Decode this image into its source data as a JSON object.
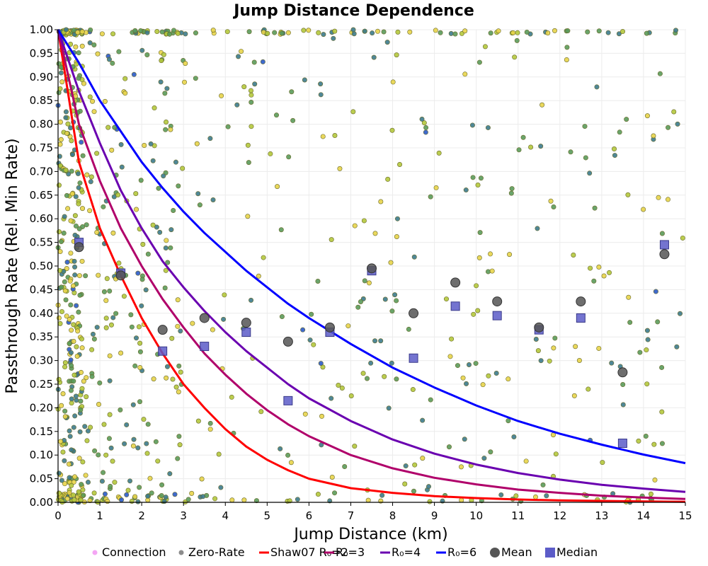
{
  "chart_data": {
    "type": "scatter",
    "title": "Jump Distance Dependence",
    "xlabel": "Jump Distance (km)",
    "ylabel": "Passthrough Rate (Rel. Min Rate)",
    "xlim": [
      0,
      15
    ],
    "ylim": [
      0,
      1
    ],
    "xticks": [
      "0",
      "1",
      "2",
      "3",
      "4",
      "5",
      "6",
      "7",
      "8",
      "9",
      "10",
      "11",
      "12",
      "13",
      "14",
      "15"
    ],
    "yticks": [
      "0.00",
      "0.05",
      "0.10",
      "0.15",
      "0.20",
      "0.25",
      "0.30",
      "0.35",
      "0.40",
      "0.45",
      "0.50",
      "0.55",
      "0.60",
      "0.65",
      "0.70",
      "0.75",
      "0.80",
      "0.85",
      "0.90",
      "0.95",
      "1.00"
    ],
    "grid": true,
    "legend_position": "bottom",
    "legend": [
      {
        "label": "Connection",
        "kind": "dot",
        "color": "#f4a6f4"
      },
      {
        "label": "Zero-Rate",
        "kind": "dot",
        "color": "#8c8c8c"
      },
      {
        "label": "Shaw07 R₀=2",
        "kind": "line",
        "color": "#ff0000"
      },
      {
        "label": "R₀=3",
        "kind": "line",
        "color": "#b0006a"
      },
      {
        "label": "R₀=4",
        "kind": "line",
        "color": "#6a00b0"
      },
      {
        "label": "R₀=6",
        "kind": "line",
        "color": "#0000ff"
      },
      {
        "label": "Mean",
        "kind": "circle",
        "color": "#555555"
      },
      {
        "label": "Median",
        "kind": "square",
        "color": "#5c5cc8"
      }
    ],
    "curves": [
      {
        "name": "Shaw07 R₀=2",
        "color": "#ff0000",
        "x": [
          0,
          0.5,
          1,
          1.5,
          2,
          2.5,
          3,
          3.5,
          4,
          4.5,
          5,
          5.5,
          6,
          7,
          8,
          9,
          10,
          11,
          12,
          13,
          14,
          15
        ],
        "y": [
          1.0,
          0.72,
          0.58,
          0.48,
          0.39,
          0.315,
          0.25,
          0.2,
          0.155,
          0.118,
          0.09,
          0.068,
          0.05,
          0.03,
          0.02,
          0.013,
          0.009,
          0.006,
          0.004,
          0.003,
          0.002,
          0.001
        ]
      },
      {
        "name": "R₀=3",
        "color": "#b0006a",
        "x": [
          0,
          0.5,
          1,
          1.5,
          2,
          2.5,
          3,
          3.5,
          4,
          4.5,
          5,
          5.5,
          6,
          7,
          8,
          9,
          10,
          11,
          12,
          13,
          14,
          15
        ],
        "y": [
          1.0,
          0.8,
          0.68,
          0.58,
          0.5,
          0.43,
          0.37,
          0.315,
          0.27,
          0.23,
          0.195,
          0.165,
          0.14,
          0.1,
          0.072,
          0.052,
          0.038,
          0.027,
          0.02,
          0.014,
          0.01,
          0.007
        ]
      },
      {
        "name": "R₀=4",
        "color": "#6a00b0",
        "x": [
          0,
          0.5,
          1,
          1.5,
          2,
          2.5,
          3,
          3.5,
          4,
          4.5,
          5,
          5.5,
          6,
          7,
          8,
          9,
          10,
          11,
          12,
          13,
          14,
          15
        ],
        "y": [
          1.0,
          0.87,
          0.76,
          0.66,
          0.58,
          0.51,
          0.455,
          0.405,
          0.36,
          0.32,
          0.285,
          0.25,
          0.22,
          0.172,
          0.133,
          0.103,
          0.08,
          0.062,
          0.048,
          0.037,
          0.029,
          0.022
        ]
      },
      {
        "name": "R₀=6",
        "color": "#0000ff",
        "x": [
          0,
          0.5,
          1,
          1.5,
          2,
          2.5,
          3,
          3.5,
          4,
          4.5,
          5,
          5.5,
          6,
          7,
          8,
          9,
          10,
          11,
          12,
          13,
          14,
          15
        ],
        "y": [
          1.0,
          0.93,
          0.85,
          0.785,
          0.72,
          0.665,
          0.615,
          0.57,
          0.53,
          0.49,
          0.455,
          0.42,
          0.39,
          0.335,
          0.285,
          0.243,
          0.205,
          0.172,
          0.145,
          0.122,
          0.101,
          0.083
        ]
      }
    ],
    "mean": {
      "x": [
        0.5,
        1.5,
        2.5,
        3.5,
        4.5,
        5.5,
        6.5,
        7.5,
        8.5,
        9.5,
        10.5,
        11.5,
        12.5,
        13.5,
        14.5
      ],
      "y": [
        0.54,
        0.48,
        0.365,
        0.39,
        0.38,
        0.34,
        0.37,
        0.495,
        0.4,
        0.465,
        0.425,
        0.37,
        0.425,
        0.275,
        0.525
      ]
    },
    "median": {
      "x": [
        0.5,
        1.5,
        2.5,
        3.5,
        4.5,
        5.5,
        6.5,
        7.5,
        8.5,
        9.5,
        10.5,
        11.5,
        12.5,
        13.5,
        14.5
      ],
      "y": [
        0.55,
        0.485,
        0.32,
        0.33,
        0.36,
        0.215,
        0.36,
        0.49,
        0.305,
        0.415,
        0.395,
        0.365,
        0.39,
        0.125,
        0.545
      ]
    },
    "scatter_colors": [
      "#e8d44a",
      "#b4c83c",
      "#5a9a5a",
      "#3c7a8c",
      "#2a5ac8"
    ],
    "scatter_note_count": 950
  }
}
